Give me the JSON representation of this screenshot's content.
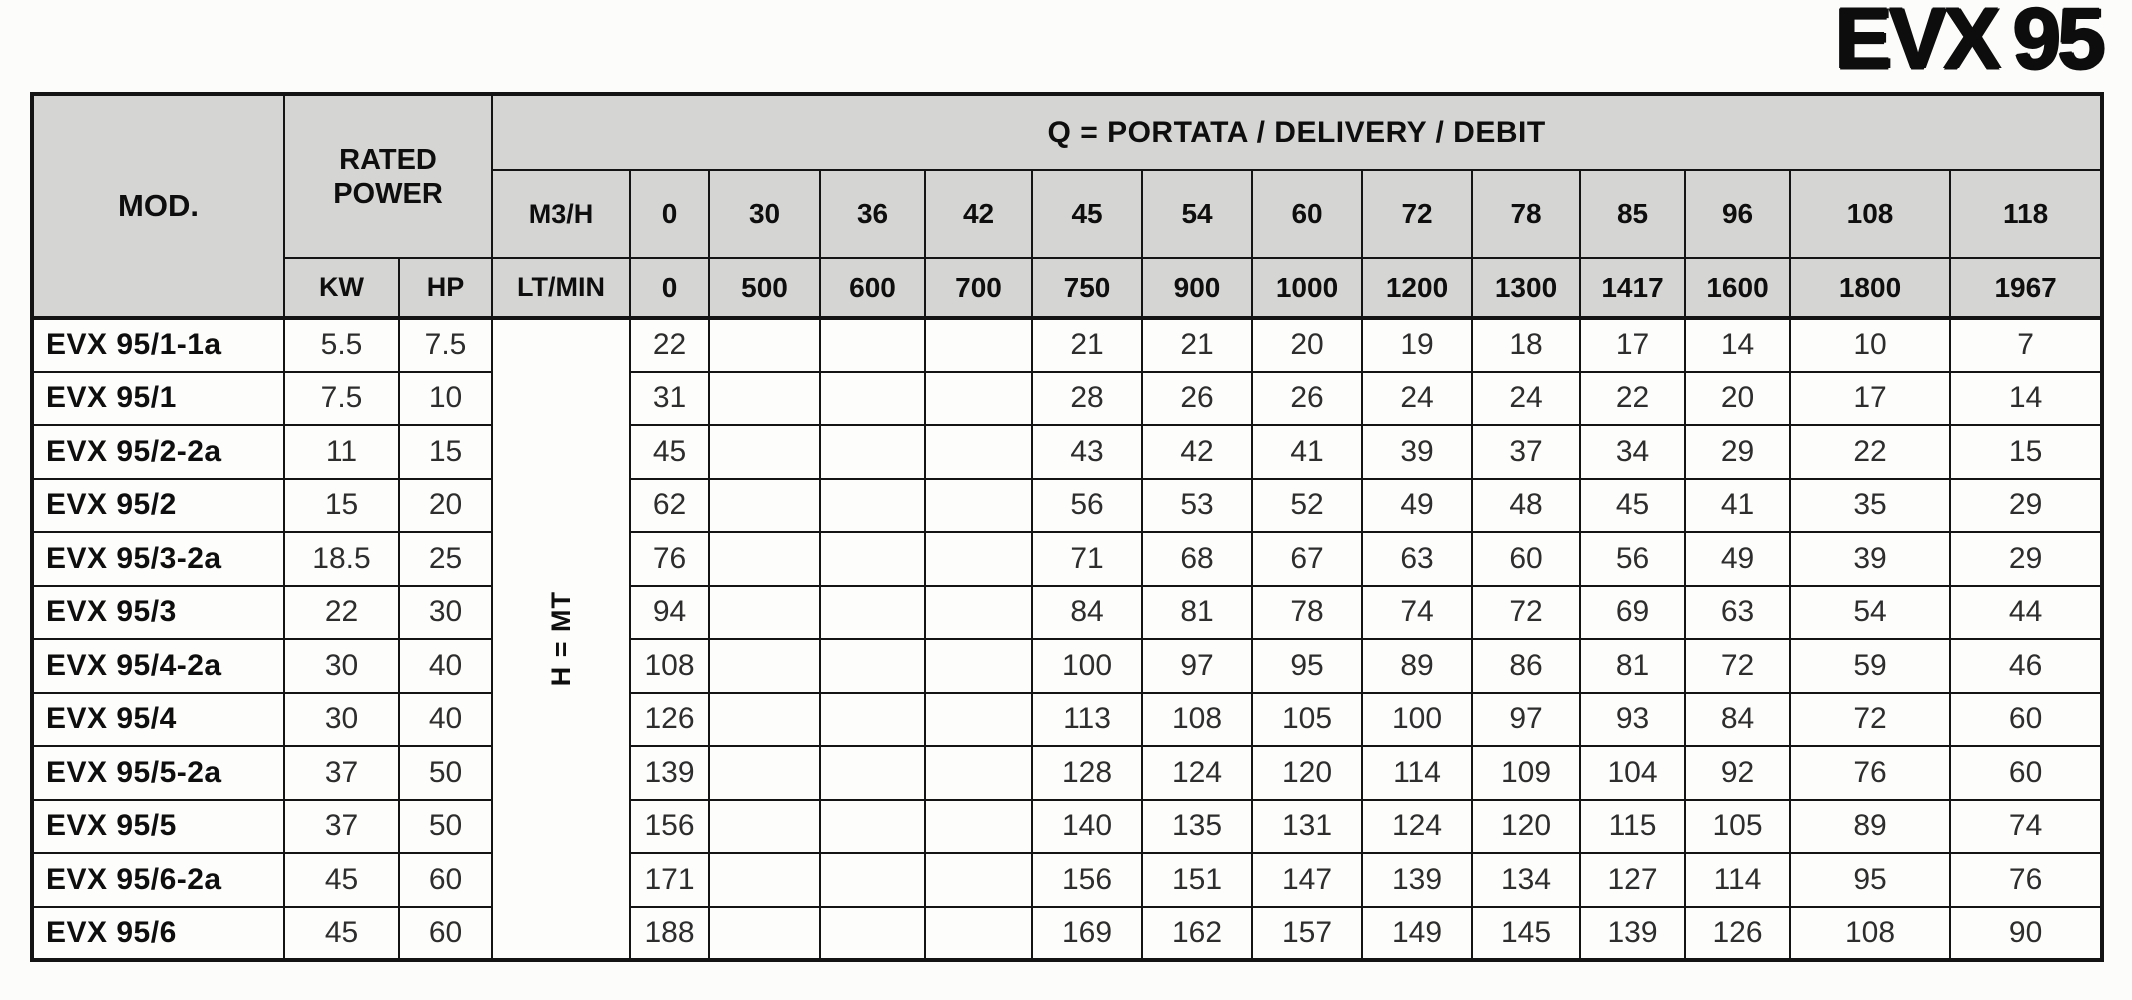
{
  "page": {
    "title": "EVX 95"
  },
  "colors": {
    "header_bg": "#d5d5d3",
    "cell_bg": "#fdfdfb",
    "border": "#141414",
    "text": "#0e0e0e",
    "value_text": "#2d2d2d"
  },
  "table": {
    "mod_header": "MOD.",
    "rated_power_header": "RATED POWER",
    "kw_label": "KW",
    "hp_label": "HP",
    "q_header": "Q = PORTATA / DELIVERY / DEBIT",
    "m3h_label": "M3/H",
    "ltmin_label": "LT/MIN",
    "h_mt_label": "H = MT",
    "m3h_values": [
      "0",
      "30",
      "36",
      "42",
      "45",
      "54",
      "60",
      "72",
      "78",
      "85",
      "96",
      "108",
      "118"
    ],
    "ltmin_values": [
      "0",
      "500",
      "600",
      "700",
      "750",
      "900",
      "1000",
      "1200",
      "1300",
      "1417",
      "1600",
      "1800",
      "1967"
    ],
    "rows": [
      {
        "mod": "EVX 95/1-1a",
        "kw": "5.5",
        "hp": "7.5",
        "values": [
          "22",
          "",
          "",
          "",
          "21",
          "21",
          "20",
          "19",
          "18",
          "17",
          "14",
          "10",
          "7"
        ]
      },
      {
        "mod": "EVX 95/1",
        "kw": "7.5",
        "hp": "10",
        "values": [
          "31",
          "",
          "",
          "",
          "28",
          "26",
          "26",
          "24",
          "24",
          "22",
          "20",
          "17",
          "14"
        ]
      },
      {
        "mod": "EVX 95/2-2a",
        "kw": "11",
        "hp": "15",
        "values": [
          "45",
          "",
          "",
          "",
          "43",
          "42",
          "41",
          "39",
          "37",
          "34",
          "29",
          "22",
          "15"
        ]
      },
      {
        "mod": "EVX 95/2",
        "kw": "15",
        "hp": "20",
        "values": [
          "62",
          "",
          "",
          "",
          "56",
          "53",
          "52",
          "49",
          "48",
          "45",
          "41",
          "35",
          "29"
        ]
      },
      {
        "mod": "EVX 95/3-2a",
        "kw": "18.5",
        "hp": "25",
        "values": [
          "76",
          "",
          "",
          "",
          "71",
          "68",
          "67",
          "63",
          "60",
          "56",
          "49",
          "39",
          "29"
        ]
      },
      {
        "mod": "EVX 95/3",
        "kw": "22",
        "hp": "30",
        "values": [
          "94",
          "",
          "",
          "",
          "84",
          "81",
          "78",
          "74",
          "72",
          "69",
          "63",
          "54",
          "44"
        ]
      },
      {
        "mod": "EVX 95/4-2a",
        "kw": "30",
        "hp": "40",
        "values": [
          "108",
          "",
          "",
          "",
          "100",
          "97",
          "95",
          "89",
          "86",
          "81",
          "72",
          "59",
          "46"
        ]
      },
      {
        "mod": "EVX 95/4",
        "kw": "30",
        "hp": "40",
        "values": [
          "126",
          "",
          "",
          "",
          "113",
          "108",
          "105",
          "100",
          "97",
          "93",
          "84",
          "72",
          "60"
        ]
      },
      {
        "mod": "EVX 95/5-2a",
        "kw": "37",
        "hp": "50",
        "values": [
          "139",
          "",
          "",
          "",
          "128",
          "124",
          "120",
          "114",
          "109",
          "104",
          "92",
          "76",
          "60"
        ]
      },
      {
        "mod": "EVX 95/5",
        "kw": "37",
        "hp": "50",
        "values": [
          "156",
          "",
          "",
          "",
          "140",
          "135",
          "131",
          "124",
          "120",
          "115",
          "105",
          "89",
          "74"
        ]
      },
      {
        "mod": "EVX 95/6-2a",
        "kw": "45",
        "hp": "60",
        "values": [
          "171",
          "",
          "",
          "",
          "156",
          "151",
          "147",
          "139",
          "134",
          "127",
          "114",
          "95",
          "76"
        ]
      },
      {
        "mod": "EVX 95/6",
        "kw": "45",
        "hp": "60",
        "values": [
          "188",
          "",
          "",
          "",
          "169",
          "162",
          "157",
          "149",
          "145",
          "139",
          "126",
          "108",
          "90"
        ]
      }
    ]
  }
}
